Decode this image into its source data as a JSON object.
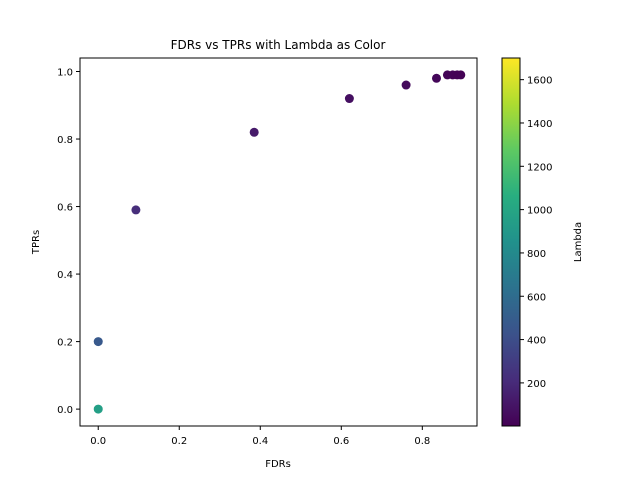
{
  "chart_data": {
    "type": "scatter",
    "title": "FDRs vs TPRs with Lambda as Color",
    "xlabel": "FDRs",
    "ylabel": "TPRs",
    "colorbar_label": "Lambda",
    "xlim": [
      -0.045,
      0.935
    ],
    "ylim": [
      -0.05,
      1.04
    ],
    "xticks": [
      0.0,
      0.2,
      0.4,
      0.6,
      0.8
    ],
    "yticks": [
      0.0,
      0.2,
      0.4,
      0.6,
      0.8,
      1.0
    ],
    "x_tick_labels": [
      "0.0",
      "0.2",
      "0.4",
      "0.6",
      "0.8"
    ],
    "y_tick_labels": [
      "0.0",
      "0.2",
      "0.4",
      "0.6",
      "0.8",
      "1.0"
    ],
    "colormap": "viridis",
    "color_range": [
      1,
      1700
    ],
    "colorbar_ticks": [
      200,
      400,
      600,
      800,
      1000,
      1200,
      1400,
      1600
    ],
    "colorbar_tick_labels": [
      "200",
      "400",
      "600",
      "800",
      "1000",
      "1200",
      "1400",
      "1600"
    ],
    "points": [
      {
        "x": 0.0,
        "y": 0.0,
        "lambda": 950
      },
      {
        "x": 0.0,
        "y": 0.2,
        "lambda": 470
      },
      {
        "x": 0.093,
        "y": 0.59,
        "lambda": 220
      },
      {
        "x": 0.385,
        "y": 0.82,
        "lambda": 120
      },
      {
        "x": 0.62,
        "y": 0.92,
        "lambda": 70
      },
      {
        "x": 0.76,
        "y": 0.96,
        "lambda": 45
      },
      {
        "x": 0.835,
        "y": 0.98,
        "lambda": 30
      },
      {
        "x": 0.862,
        "y": 0.99,
        "lambda": 20
      },
      {
        "x": 0.875,
        "y": 0.99,
        "lambda": 12
      },
      {
        "x": 0.886,
        "y": 0.99,
        "lambda": 8
      },
      {
        "x": 0.895,
        "y": 0.99,
        "lambda": 5
      }
    ],
    "grid": false,
    "legend": "none"
  }
}
